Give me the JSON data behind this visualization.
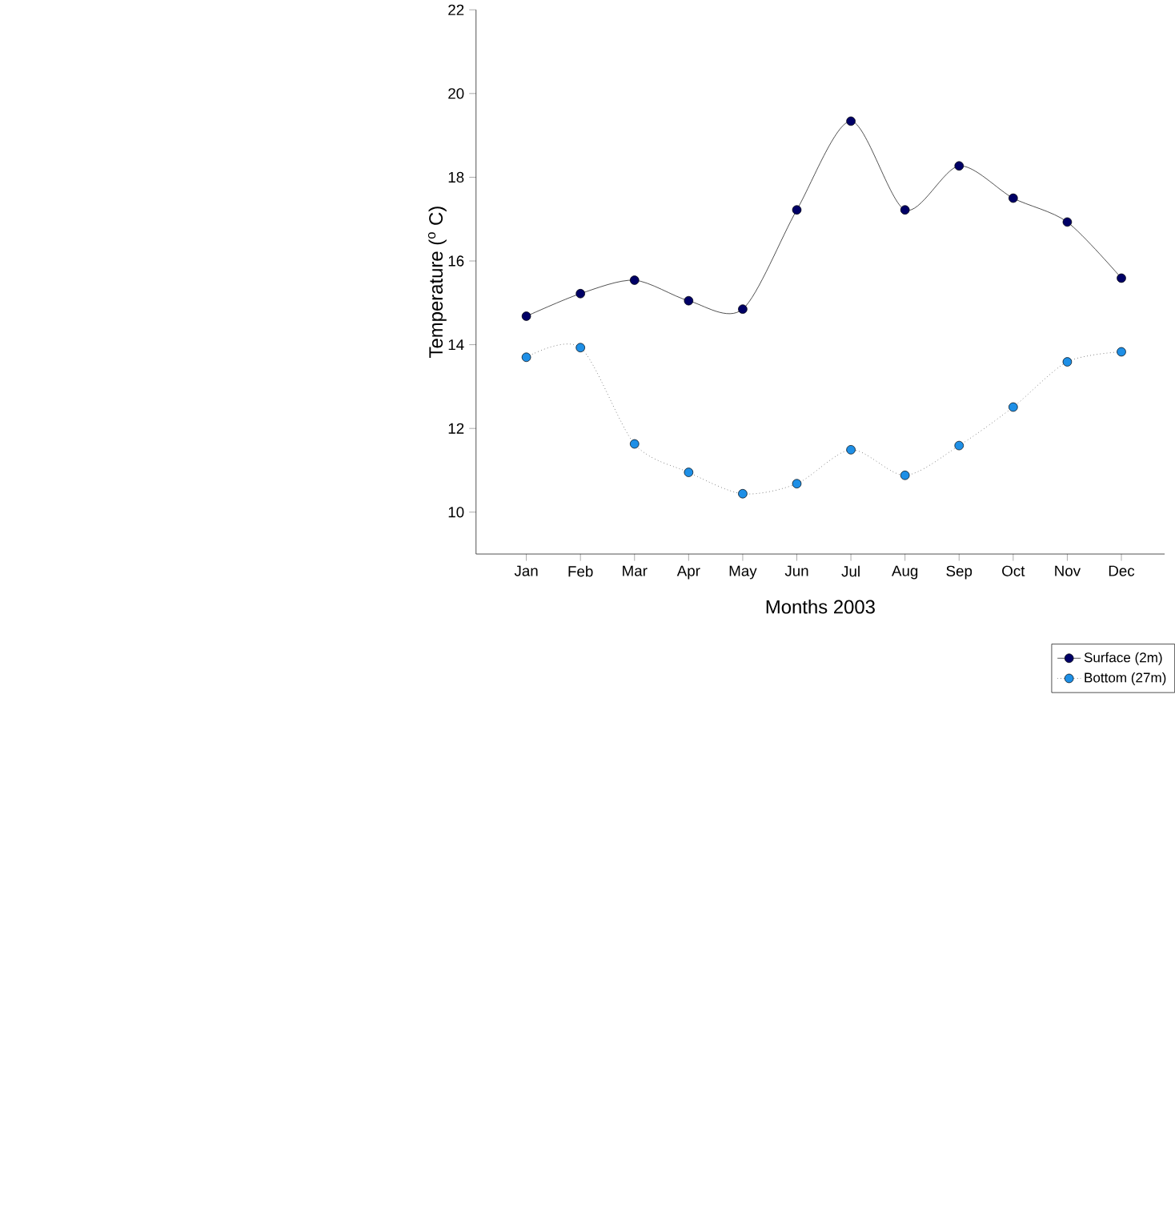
{
  "chart_data": {
    "type": "line",
    "xlabel": "Months 2003",
    "ylabel": "Temperature ($^{o}$ C)",
    "categories": [
      "Jan",
      "Feb",
      "Mar",
      "Apr",
      "May",
      "Jun",
      "Jul",
      "Aug",
      "Sep",
      "Oct",
      "Nov",
      "Dec"
    ],
    "ylim": [
      9,
      22
    ],
    "yticks": [
      10,
      12,
      14,
      16,
      18,
      20,
      22
    ],
    "grid": false,
    "legend": "bottom right",
    "marker": "circle",
    "series": [
      {
        "name": "Surface (2m)",
        "color": "#000066",
        "line_style": "solid",
        "values": [
          14.68,
          15.22,
          15.54,
          15.05,
          14.85,
          17.22,
          19.34,
          17.22,
          18.27,
          17.5,
          16.93,
          15.59
        ]
      },
      {
        "name": "Bottom (27m)",
        "color": "#1e8fe6",
        "line_style": "dotted",
        "values": [
          13.7,
          13.93,
          11.63,
          10.95,
          10.44,
          10.68,
          11.49,
          10.88,
          11.59,
          12.51,
          13.59,
          13.83
        ]
      }
    ]
  }
}
